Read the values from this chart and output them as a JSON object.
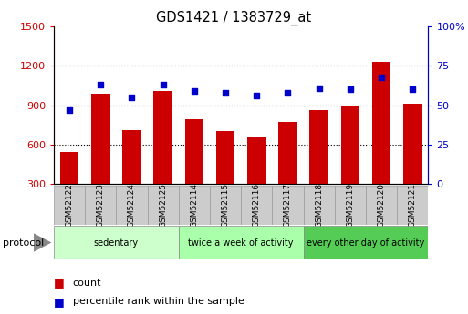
{
  "title": "GDS1421 / 1383729_at",
  "samples": [
    "GSM52122",
    "GSM52123",
    "GSM52124",
    "GSM52125",
    "GSM52114",
    "GSM52115",
    "GSM52116",
    "GSM52117",
    "GSM52118",
    "GSM52119",
    "GSM52120",
    "GSM52121"
  ],
  "counts": [
    540,
    990,
    710,
    1010,
    790,
    700,
    660,
    770,
    860,
    900,
    1230,
    910
  ],
  "percentiles": [
    47,
    63,
    55,
    63,
    59,
    58,
    56,
    58,
    61,
    60,
    68,
    60
  ],
  "groups": [
    {
      "label": "sedentary",
      "start": 0,
      "end": 4,
      "color": "#ccffcc"
    },
    {
      "label": "twice a week of activity",
      "start": 4,
      "end": 8,
      "color": "#aaffaa"
    },
    {
      "label": "every other day of activity",
      "start": 8,
      "end": 12,
      "color": "#55cc55"
    }
  ],
  "ylim_left": [
    300,
    1500
  ],
  "ylim_right": [
    0,
    100
  ],
  "yticks_left": [
    300,
    600,
    900,
    1200,
    1500
  ],
  "yticks_right": [
    0,
    25,
    50,
    75,
    100
  ],
  "bar_color": "#cc0000",
  "dot_color": "#0000cc",
  "grid_color": "#000000",
  "bg_color": "#ffffff",
  "tick_label_color_left": "#cc0000",
  "tick_label_color_right": "#0000cc",
  "legend_count_color": "#cc0000",
  "legend_pct_color": "#0000cc",
  "cell_color": "#cccccc",
  "cell_edge_color": "#999999"
}
